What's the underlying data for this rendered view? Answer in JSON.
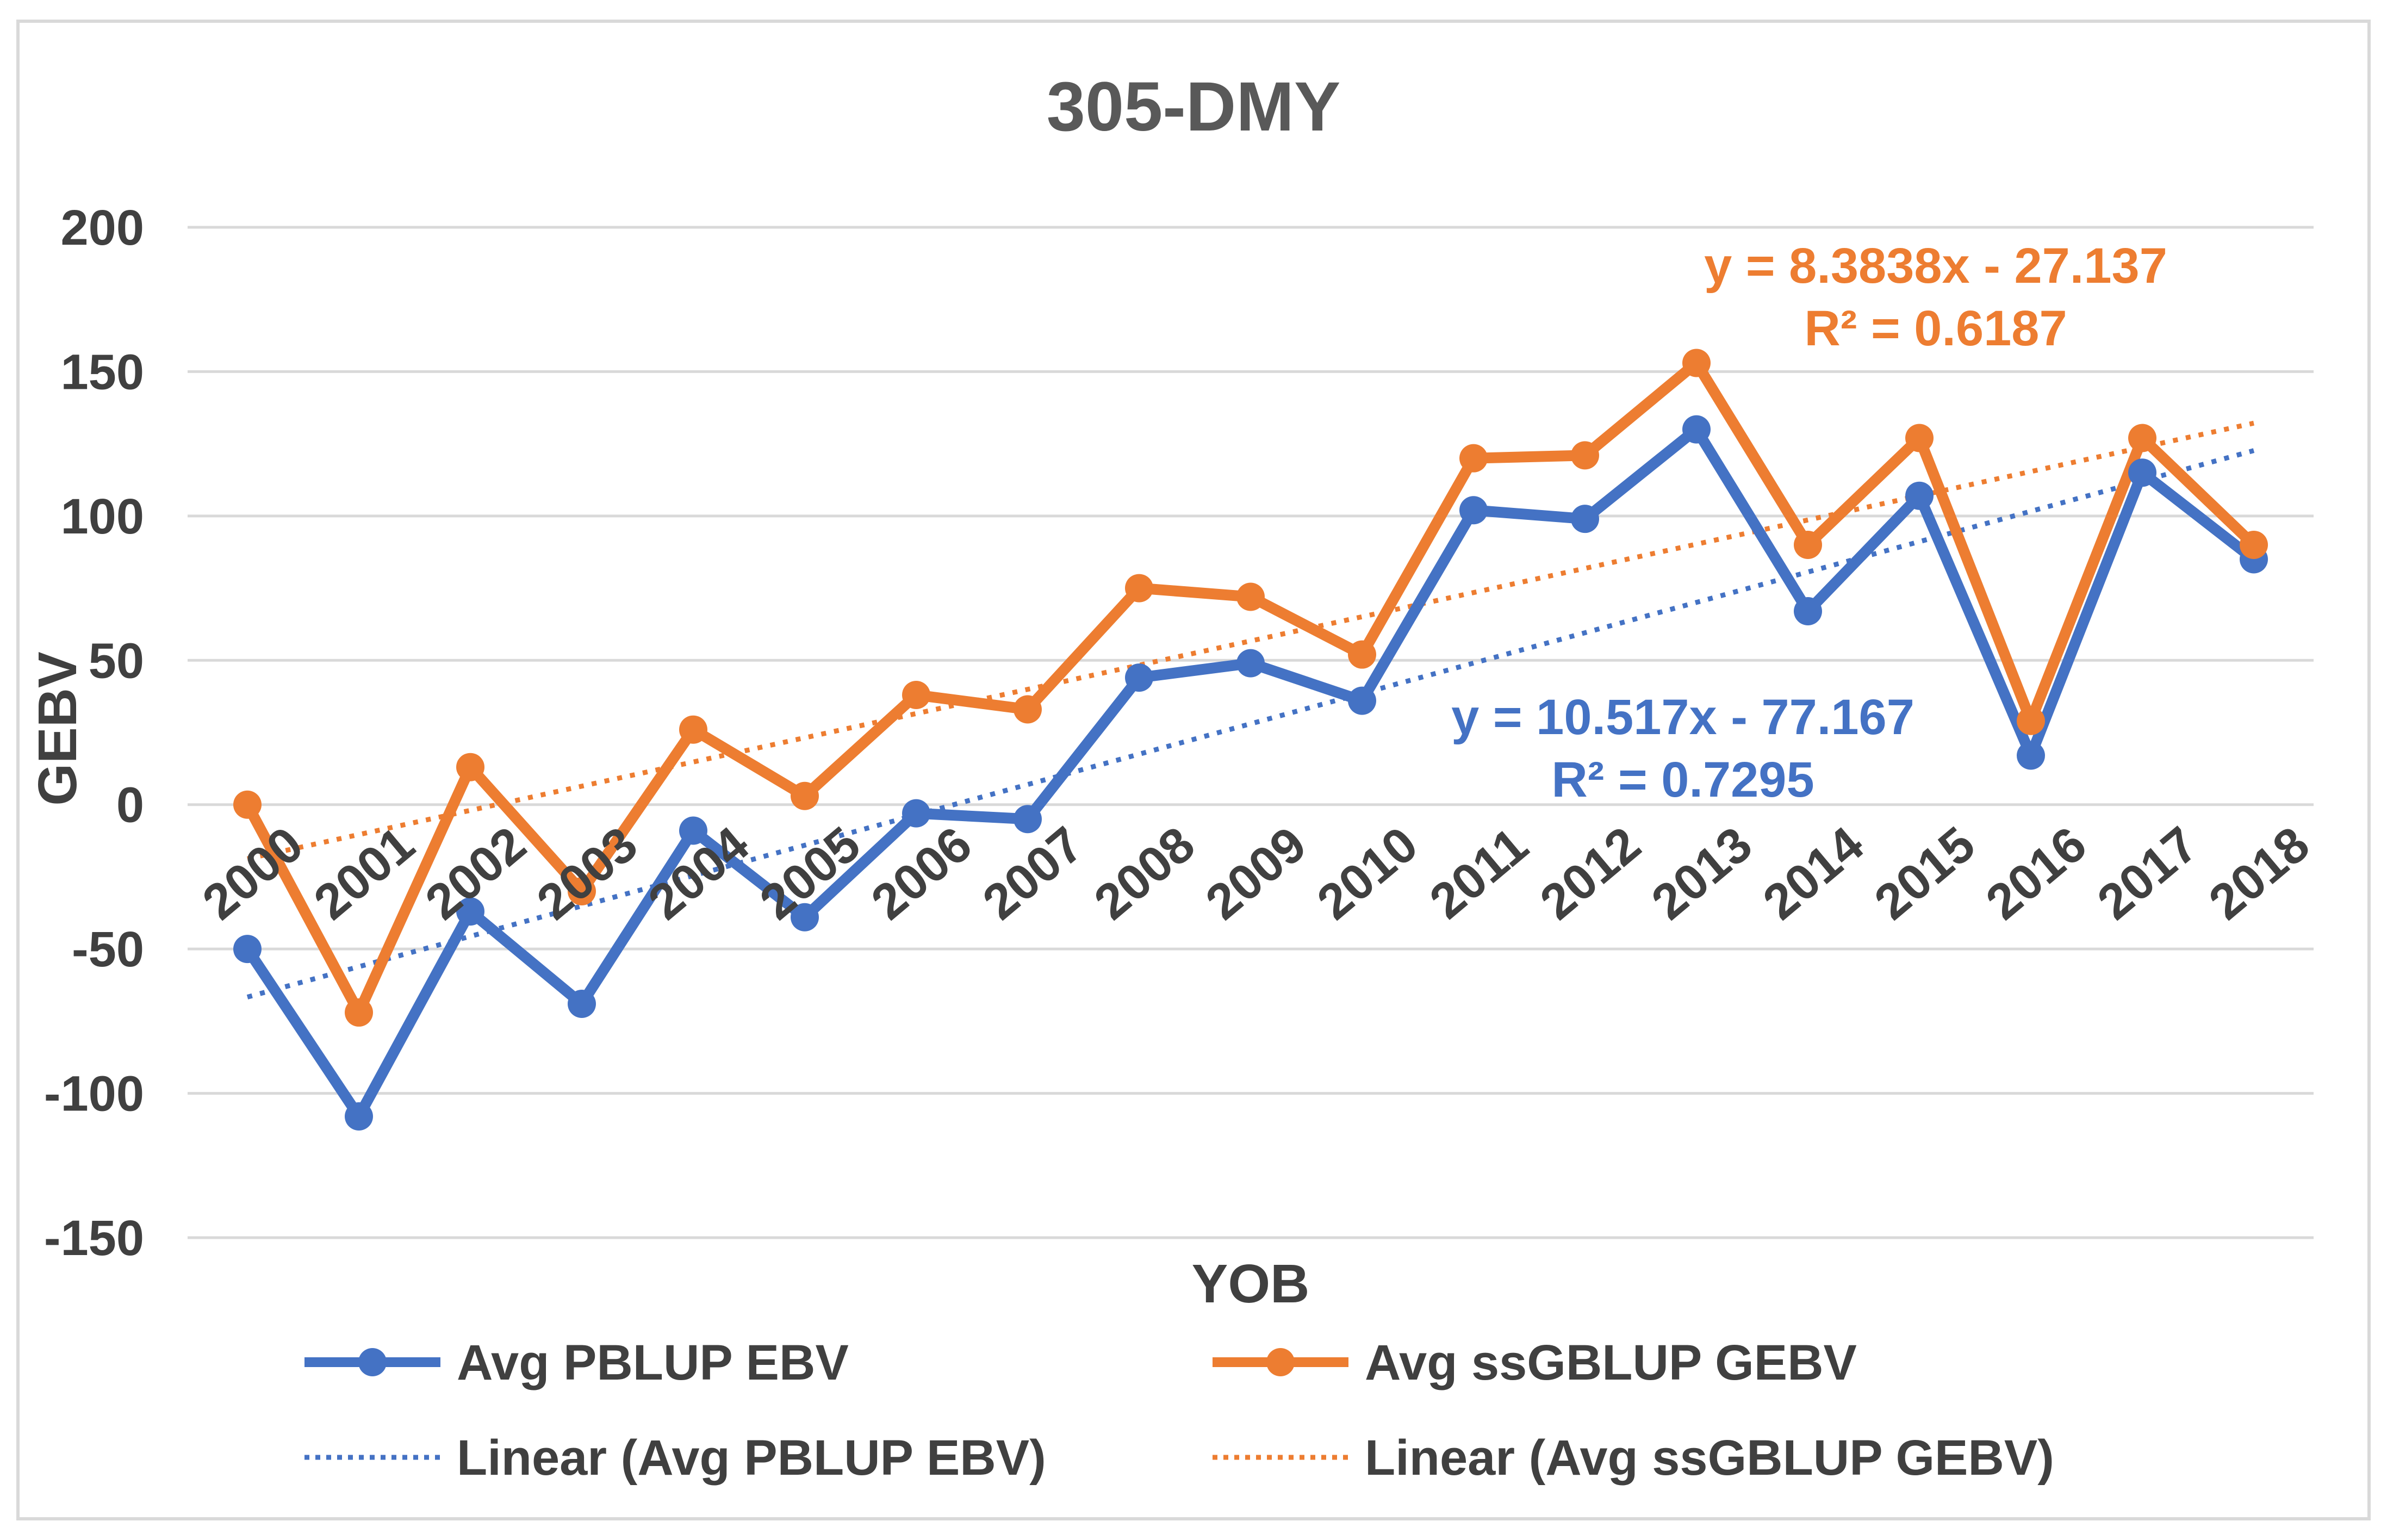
{
  "chart_data": {
    "type": "line",
    "title": "305-DMY",
    "xlabel": "YOB",
    "ylabel": "GEBV",
    "ylim": [
      -150,
      200
    ],
    "yticks": [
      200,
      150,
      100,
      50,
      0,
      -50,
      -100,
      -150
    ],
    "categories": [
      "2000",
      "2001",
      "2002",
      "2003",
      "2004",
      "2005",
      "2006",
      "2007",
      "2008",
      "2009",
      "2010",
      "2011",
      "2012",
      "2013",
      "2014",
      "2015",
      "2016",
      "2017",
      "2018"
    ],
    "series": [
      {
        "name": "Avg PBLUP EBV",
        "color": "#4472c4",
        "values": [
          -50,
          -108,
          -37,
          -69,
          -9,
          -39,
          -3,
          -5,
          44,
          49,
          36,
          102,
          99,
          130,
          67,
          107,
          17,
          115,
          85
        ]
      },
      {
        "name": "Avg ssGBLUP GEBV",
        "color": "#ed7d31",
        "values": [
          0,
          -72,
          13,
          -30,
          26,
          3,
          38,
          33,
          75,
          72,
          52,
          120,
          121,
          153,
          90,
          127,
          29,
          127,
          90
        ]
      }
    ],
    "trendlines": [
      {
        "name": "Linear (Avg PBLUP EBV)",
        "color": "#4472c4",
        "slope": 10.517,
        "intercept": -77.167,
        "equation": "y = 10.517x - 77.167",
        "r2": "R² = 0.7295"
      },
      {
        "name": "Linear (Avg ssGBLUP GEBV)",
        "color": "#ed7d31",
        "slope": 8.3838,
        "intercept": -27.137,
        "equation": "y = 8.3838x - 27.137",
        "r2": "R² = 0.6187"
      }
    ],
    "legend_position": "bottom"
  }
}
